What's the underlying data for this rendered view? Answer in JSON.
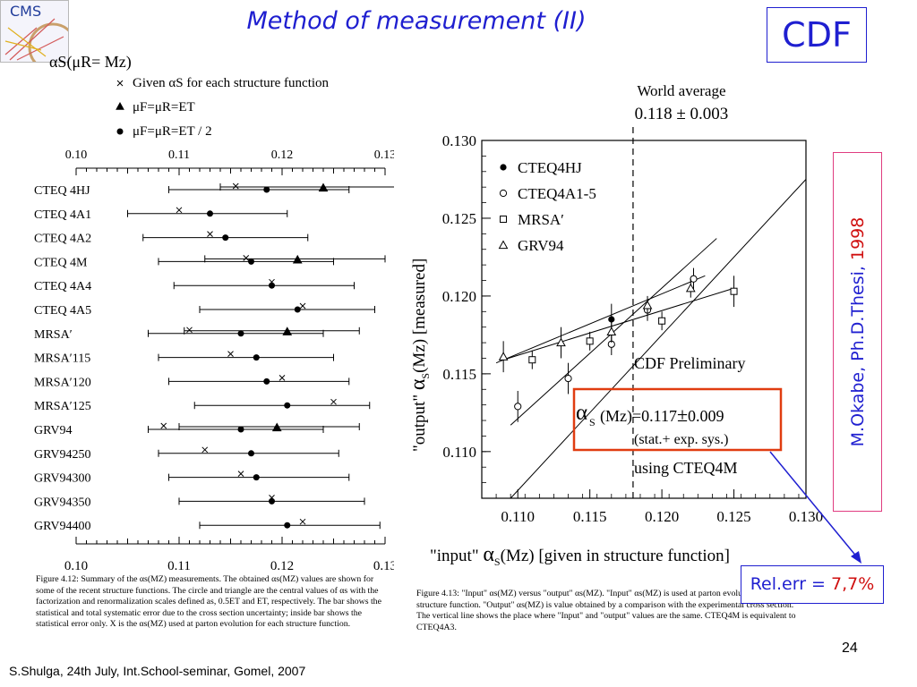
{
  "slide": {
    "title": "Method of measurement (II)",
    "logo_text": "CMS",
    "cdf_label": "CDF",
    "thesis_author": "M.Okabe, Ph.D.Thesi, ",
    "thesis_year": "1998",
    "relerr_label": "Rel.err = ",
    "relerr_value": "7,7%",
    "page_number": "24",
    "footer": "S.Shulga, 24th July, Int.School-seminar, Gomel, 2007",
    "colors": {
      "title": "#1f1fd0",
      "highlight": "#d01010",
      "thesis_border": "#e03c80",
      "answer_box": "#e03c10"
    }
  },
  "left_caption": "Figure 4.12: Summary of the αs(MZ) measurements. The obtained αs(MZ) values are shown for some of the recent structure functions. The circle and triangle are the central values of αs with the factorization and renormalization scales defined as, 0.5ET and ET, respectively. The bar shows the statistical and total systematic error due to the cross section uncertainty; inside bar shows the statistical error only. X is the αs(MZ) used at parton evolution for each structure function.",
  "right_caption": "Figure 4.13: \"Input\" αs(MZ) versus \"output\" αs(MZ). \"Input\" αs(MZ) is used at parton evolution for each structure function. \"Output\" αs(MZ) is value obtained by a comparison with the experimental cross section. The vertical line shows the place where \"Input\" and \"output\" values are the same. CTEQ4M is equivalent to CTEQ4A3.",
  "chart_data": [
    {
      "type": "scatter",
      "description_style": "error-bar summary",
      "legend": {
        "title": "αS(μR= Mz)",
        "entries": [
          {
            "marker": "x",
            "label": "Given αS for each structure function"
          },
          {
            "marker": "triangle",
            "label": "μF=μR=ET"
          },
          {
            "marker": "circle",
            "label": "μF=μR=ET / 2"
          }
        ]
      },
      "xlim": [
        0.1,
        0.13
      ],
      "ticks": [
        "0.10",
        "0.11",
        "0.12",
        "0.13"
      ],
      "rows": [
        {
          "label": "CTEQ 4HJ",
          "x_given": 0.1155,
          "circle": 0.1185,
          "triangle": 0.124,
          "bar": [
            0.109,
            0.1265
          ],
          "outer": [
            0.114,
            0.1335
          ]
        },
        {
          "label": "CTEQ 4A1",
          "x_given": 0.11,
          "circle": 0.113,
          "triangle": null,
          "bar": [
            0.105,
            0.1205
          ],
          "outer": null
        },
        {
          "label": "CTEQ 4A2",
          "x_given": 0.113,
          "circle": 0.1145,
          "triangle": null,
          "bar": [
            0.1065,
            0.1225
          ],
          "outer": null
        },
        {
          "label": "CTEQ 4M",
          "x_given": 0.1165,
          "circle": 0.117,
          "triangle": 0.1215,
          "bar": [
            0.108,
            0.125
          ],
          "outer": [
            0.1125,
            0.13
          ]
        },
        {
          "label": "CTEQ 4A4",
          "x_given": 0.119,
          "circle": 0.119,
          "triangle": null,
          "bar": [
            0.1095,
            0.127
          ],
          "outer": null
        },
        {
          "label": "CTEQ 4A5",
          "x_given": 0.122,
          "circle": 0.1215,
          "triangle": null,
          "bar": [
            0.112,
            0.129
          ],
          "outer": null
        },
        {
          "label": "MRSA′",
          "x_given": 0.111,
          "circle": 0.116,
          "triangle": 0.1205,
          "bar": [
            0.107,
            0.124
          ],
          "outer": [
            0.1105,
            0.1275
          ]
        },
        {
          "label": "MRSA′115",
          "x_given": 0.115,
          "circle": 0.1175,
          "triangle": null,
          "bar": [
            0.108,
            0.125
          ],
          "outer": null
        },
        {
          "label": "MRSA′120",
          "x_given": 0.12,
          "circle": 0.1185,
          "triangle": null,
          "bar": [
            0.109,
            0.1265
          ],
          "outer": null
        },
        {
          "label": "MRSA′125",
          "x_given": 0.125,
          "circle": 0.1205,
          "triangle": null,
          "bar": [
            0.1115,
            0.1285
          ],
          "outer": null
        },
        {
          "label": "GRV94",
          "x_given": 0.1085,
          "circle": 0.116,
          "triangle": 0.1195,
          "bar": [
            0.107,
            0.124
          ],
          "outer": [
            0.11,
            0.1275
          ]
        },
        {
          "label": "GRV94250",
          "x_given": 0.1125,
          "circle": 0.117,
          "triangle": null,
          "bar": [
            0.108,
            0.1255
          ],
          "outer": null
        },
        {
          "label": "GRV94300",
          "x_given": 0.116,
          "circle": 0.1175,
          "triangle": null,
          "bar": [
            0.109,
            0.1265
          ],
          "outer": null
        },
        {
          "label": "GRV94350",
          "x_given": 0.119,
          "circle": 0.119,
          "triangle": null,
          "bar": [
            0.11,
            0.128
          ],
          "outer": null
        },
        {
          "label": "GRV94400",
          "x_given": 0.122,
          "circle": 0.1205,
          "triangle": null,
          "bar": [
            0.112,
            0.1295
          ],
          "outer": null
        }
      ]
    },
    {
      "type": "scatter",
      "xlabel_pre": "\"input\"",
      "xlabel_post": "(Mz) [given in structure function]",
      "ylabel_pre": "\"output\"",
      "ylabel_post": "(Mz) [measured]",
      "alpha_symbol": "α",
      "alpha_sub": "S",
      "xlim": [
        0.1075,
        0.13
      ],
      "ylim": [
        0.107,
        0.13
      ],
      "xticks": [
        "0.110",
        "0.115",
        "0.120",
        "0.125",
        "0.130"
      ],
      "yticks": [
        "0.110",
        "0.115",
        "0.120",
        "0.125",
        "0.130"
      ],
      "world_average_label": "World  average",
      "world_average_value": "0.118 ± 0.003",
      "world_average": 0.118,
      "preliminary_label": "CDF Preliminary",
      "result_pre": "(Mz)=0.117",
      "result_pm": "±",
      "result_post": "0.009",
      "result_note": "(stat.+ exp. sys.)",
      "using_label": "using CTEQ4M",
      "series": [
        {
          "name": "CTEQ4HJ",
          "marker": "filled-circle",
          "points": [
            [
              0.1165,
              0.1185,
              0.001
            ]
          ]
        },
        {
          "name": "CTEQ4A1-5",
          "marker": "open-circle",
          "points": [
            [
              0.11,
              0.1129,
              0.001
            ],
            [
              0.1135,
              0.1147,
              0.001
            ],
            [
              0.1165,
              0.1169,
              0.0007
            ],
            [
              0.119,
              0.1191,
              0.0007
            ],
            [
              0.1222,
              0.1211,
              0.0007
            ]
          ]
        },
        {
          "name": "MRSA′",
          "marker": "open-square",
          "points": [
            [
              0.111,
              0.1159,
              0.0006
            ],
            [
              0.115,
              0.1171,
              0.0006
            ],
            [
              0.12,
              0.1184,
              0.0006
            ],
            [
              0.125,
              0.1203,
              0.001
            ]
          ]
        },
        {
          "name": "GRV94",
          "marker": "open-triangle",
          "points": [
            [
              0.109,
              0.1161,
              0.001
            ],
            [
              0.113,
              0.117,
              0.001
            ],
            [
              0.1165,
              0.1177,
              0.0007
            ],
            [
              0.119,
              0.1194,
              0.0006
            ],
            [
              0.122,
              0.1205,
              0.0006
            ]
          ]
        }
      ],
      "fit_lines": [
        {
          "from": [
            0.1095,
            0.1117
          ],
          "to": [
            0.1238,
            0.1237
          ]
        },
        {
          "from": [
            0.109,
            0.1159
          ],
          "to": [
            0.125,
            0.1205
          ]
        },
        {
          "from": [
            0.1085,
            0.1157
          ],
          "to": [
            0.123,
            0.1213
          ]
        }
      ]
    }
  ]
}
